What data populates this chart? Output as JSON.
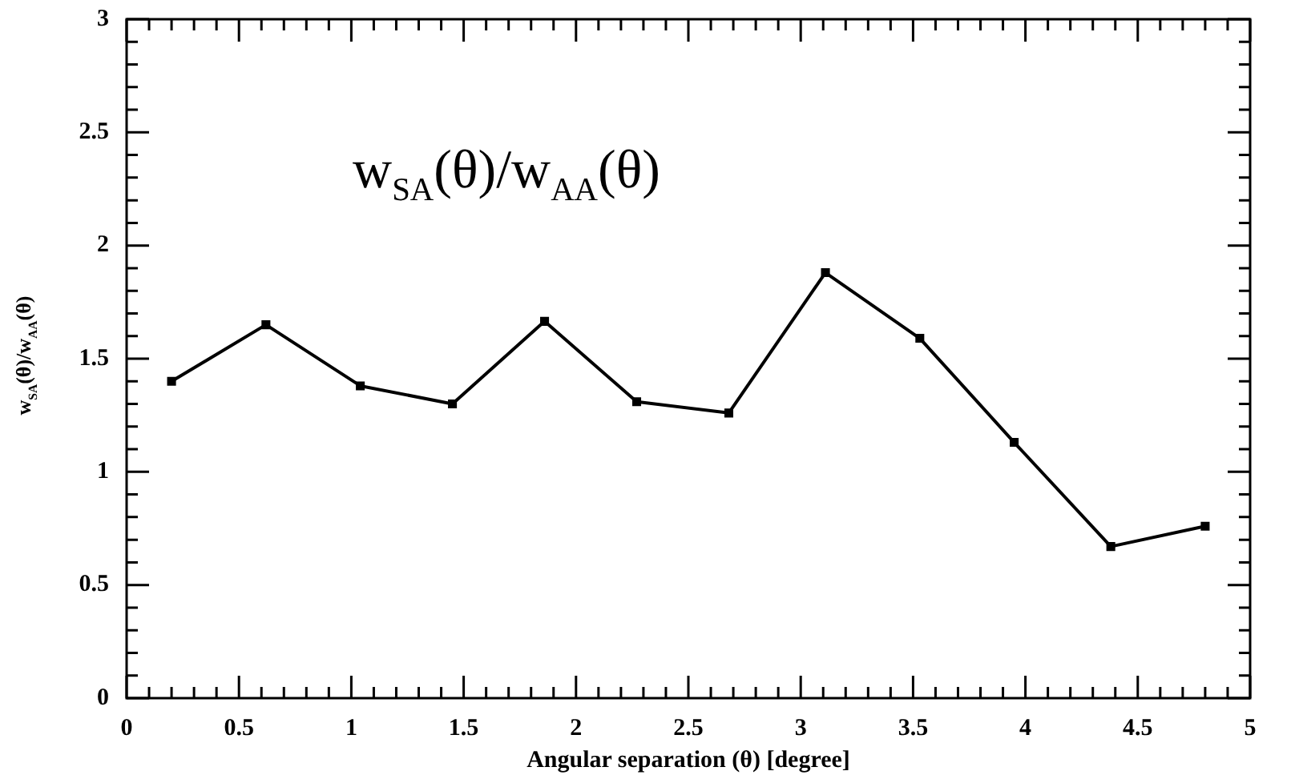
{
  "chart_data": {
    "type": "line",
    "xlabel": "Angular separation (θ) [degree]",
    "ylabel": "w$_{SA}$(θ)/w$_{AA}$(θ)",
    "annotations": [
      "w$_{SA}$(θ)/w$_{AA}$(θ)"
    ],
    "x": [
      0.2,
      0.62,
      1.04,
      1.45,
      1.86,
      2.27,
      2.68,
      3.11,
      3.53,
      3.95,
      4.38,
      4.8
    ],
    "series": [
      {
        "color": "#000000",
        "values": [
          1.4,
          1.65,
          1.38,
          1.3,
          1.665,
          1.31,
          1.26,
          1.88,
          1.59,
          1.13,
          0.67,
          0.76
        ]
      }
    ],
    "xlim": [
      0,
      5
    ],
    "ylim": [
      0,
      3
    ],
    "xticks": [
      0,
      {
        "value": 0.1,
        "label": null
      },
      {
        "value": 0.2,
        "label": null
      },
      {
        "value": 0.3,
        "label": null
      },
      {
        "value": 0.4,
        "label": null
      },
      0.5,
      {
        "value": 0.6,
        "label": null
      },
      {
        "value": 0.7,
        "label": null
      },
      {
        "value": 0.8,
        "label": null
      },
      {
        "value": 0.9,
        "label": null
      },
      1,
      {
        "value": 1.1,
        "label": null
      },
      {
        "value": 1.2,
        "label": null
      },
      {
        "value": 1.3,
        "label": null
      },
      {
        "value": 1.4,
        "label": null
      },
      1.5,
      {
        "value": 1.6,
        "label": null
      },
      {
        "value": 1.7,
        "label": null
      },
      {
        "value": 1.8,
        "label": null
      },
      {
        "value": 1.9,
        "label": null
      },
      2,
      {
        "value": 2.1,
        "label": null
      },
      {
        "value": 2.2,
        "label": null
      },
      {
        "value": 2.3,
        "label": null
      },
      {
        "value": 2.4,
        "label": null
      },
      2.5,
      {
        "value": 2.6,
        "label": null
      },
      {
        "value": 2.7,
        "label": null
      },
      {
        "value": 2.8,
        "label": null
      },
      {
        "value": 2.9,
        "label": null
      },
      3,
      {
        "value": 3.1,
        "label": null
      },
      {
        "value": 3.2,
        "label": null
      },
      {
        "value": 3.3,
        "label": null
      },
      {
        "value": 3.4,
        "label": null
      },
      3.5,
      {
        "value": 3.6,
        "label": null
      },
      {
        "value": 3.7,
        "label": null
      },
      {
        "value": 3.8,
        "label": null
      },
      {
        "value": 3.9,
        "label": null
      },
      4,
      {
        "value": 4.1,
        "label": null
      },
      {
        "value": 4.2,
        "label": null
      },
      {
        "value": 4.3,
        "label": null
      },
      {
        "value": 4.4,
        "label": null
      },
      4.5,
      {
        "value": 4.6,
        "label": null
      },
      {
        "value": 4.7,
        "label": null
      },
      {
        "value": 4.8,
        "label": null
      },
      {
        "value": 4.9,
        "label": null
      },
      5
    ],
    "yticks": [
      0,
      {
        "value": 0.1,
        "label": null
      },
      {
        "value": 0.2,
        "label": null
      },
      {
        "value": 0.3,
        "label": null
      },
      {
        "value": 0.4,
        "label": null
      },
      0.5,
      {
        "value": 0.6,
        "label": null
      },
      {
        "value": 0.7,
        "label": null
      },
      {
        "value": 0.8,
        "label": null
      },
      {
        "value": 0.9,
        "label": null
      },
      1,
      {
        "value": 1.1,
        "label": null
      },
      {
        "value": 1.2,
        "label": null
      },
      {
        "value": 1.3,
        "label": null
      },
      {
        "value": 1.4,
        "label": null
      },
      1.5,
      {
        "value": 1.6,
        "label": null
      },
      {
        "value": 1.7,
        "label": null
      },
      {
        "value": 1.8,
        "label": null
      },
      {
        "value": 1.9,
        "label": null
      },
      2,
      {
        "value": 2.1,
        "label": null
      },
      {
        "value": 2.2,
        "label": null
      },
      {
        "value": 2.3,
        "label": null
      },
      {
        "value": 2.4,
        "label": null
      },
      2.5,
      {
        "value": 2.6,
        "label": null
      },
      {
        "value": 2.7,
        "label": null
      },
      {
        "value": 2.8,
        "label": null
      },
      {
        "value": 2.9,
        "label": null
      },
      3
    ],
    "grid": false,
    "legend": false,
    "marker": "square",
    "line_style": "solid"
  }
}
